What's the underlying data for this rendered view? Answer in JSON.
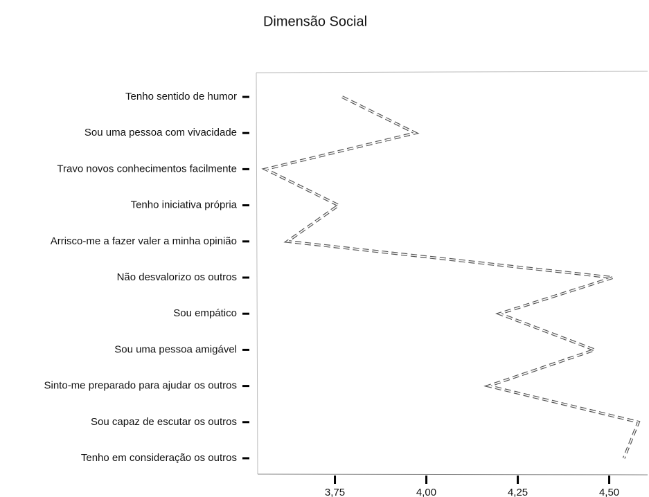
{
  "chart_data": {
    "type": "line",
    "orientation": "horizontal",
    "title": "Dimensão Social",
    "categories": [
      "Tenho sentido de humor",
      "Sou uma pessoa com vivacidade",
      "Travo novos conhecimentos facilmente",
      "Tenho iniciativa própria",
      "Arrisco-me a fazer valer a minha opinião",
      "Não desvalorizo os outros",
      "Sou empático",
      "Sou uma pessoa amigável",
      "Sinto-me preparado para ajudar os outros",
      "Sou capaz de escutar os outros",
      "Tenho em consideração os outros"
    ],
    "series": [
      {
        "name": "Dimensão Social",
        "color": "#555555",
        "values": [
          3.77,
          3.97,
          3.56,
          3.76,
          3.62,
          4.51,
          4.2,
          4.46,
          4.17,
          4.58,
          4.54
        ]
      }
    ],
    "xlim": [
      3.535,
      4.605
    ],
    "xticks": [
      {
        "value": 3.75,
        "label": "3,75"
      },
      {
        "value": 4.0,
        "label": "4,00"
      },
      {
        "value": 4.25,
        "label": "4,25"
      },
      {
        "value": 4.5,
        "label": "4,50"
      }
    ],
    "grid": false
  }
}
